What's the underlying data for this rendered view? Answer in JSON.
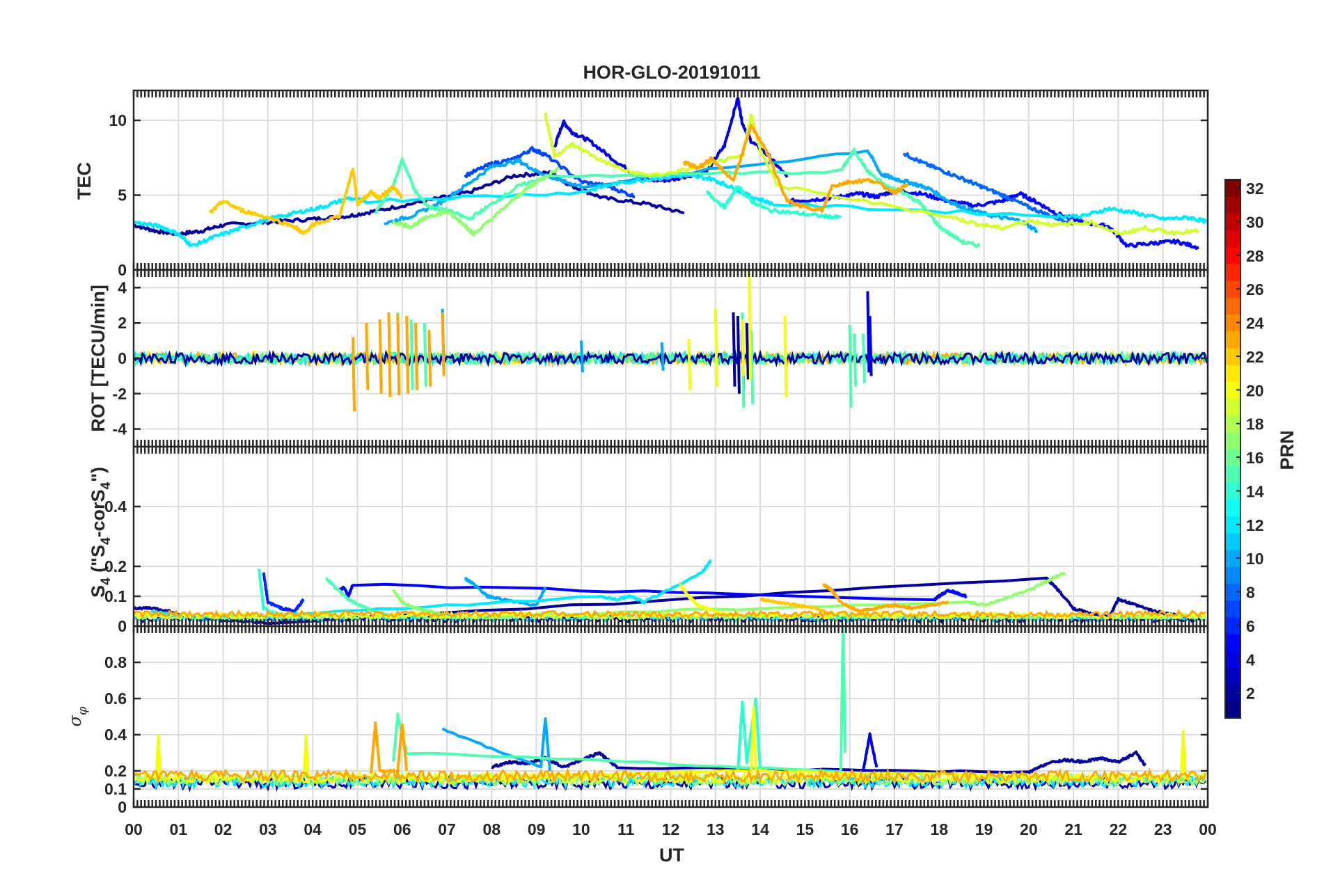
{
  "figure": {
    "title": "HOR-GLO-20191011",
    "xlabel": "UT",
    "x_ticks": [
      "00",
      "01",
      "02",
      "03",
      "04",
      "05",
      "06",
      "07",
      "08",
      "09",
      "10",
      "11",
      "12",
      "13",
      "14",
      "15",
      "16",
      "17",
      "18",
      "19",
      "20",
      "21",
      "22",
      "23",
      "00"
    ]
  },
  "colorbar": {
    "label": "PRN",
    "range": [
      1,
      32
    ],
    "ticks": [
      "2",
      "4",
      "6",
      "8",
      "10",
      "12",
      "14",
      "16",
      "18",
      "20",
      "22",
      "24",
      "26",
      "28",
      "30",
      "32"
    ]
  },
  "chart_data": [
    {
      "type": "line",
      "name": "tec",
      "ylabel": "TEC",
      "ylim": [
        0,
        12
      ],
      "yticks": [
        "0",
        "5",
        "10"
      ],
      "xlim": [
        0,
        24
      ],
      "grid": true,
      "series": [
        {
          "prn": 2,
          "x": [
            0.0,
            0.5,
            1.0,
            1.5,
            2.0,
            3.0,
            4.0,
            4.8,
            5.5,
            6.5,
            7.5,
            8.5,
            9.3,
            9.8,
            10.5,
            11.5,
            12.3
          ],
          "y": [
            3.0,
            2.6,
            2.4,
            2.6,
            3.0,
            3.2,
            3.4,
            3.6,
            4.0,
            4.6,
            5.2,
            6.3,
            6.5,
            5.6,
            4.8,
            4.4,
            3.8
          ]
        },
        {
          "prn": 4,
          "x": [
            9.4,
            9.6,
            9.8,
            10.2,
            10.8,
            11.4,
            12.0,
            12.8,
            13.2,
            13.5,
            13.6,
            13.8,
            14.2,
            14.6
          ],
          "y": [
            8.2,
            9.9,
            9.2,
            8.6,
            7.2,
            6.0,
            6.0,
            6.6,
            8.3,
            11.5,
            9.8,
            8.6,
            7.6,
            6.2
          ]
        },
        {
          "prn": 5,
          "x": [
            14.6,
            15.2,
            15.8,
            16.2,
            16.6,
            17.0,
            17.6,
            18.2,
            18.8,
            19.4,
            19.8,
            20.2,
            20.6,
            21.2,
            21.8,
            22.2,
            22.8,
            23.3,
            23.8
          ],
          "y": [
            4.6,
            4.7,
            4.9,
            5.1,
            4.9,
            5.3,
            5.1,
            4.6,
            4.3,
            4.6,
            5.1,
            4.5,
            3.8,
            3.2,
            2.9,
            1.6,
            1.8,
            1.9,
            1.5
          ]
        },
        {
          "prn": 7,
          "x": [
            7.4,
            8.0,
            8.5,
            8.9,
            9.2,
            10.0,
            10.6,
            11.2
          ],
          "y": [
            6.3,
            7.1,
            7.4,
            8.1,
            7.7,
            5.9,
            5.6,
            4.9
          ]
        },
        {
          "prn": 8,
          "x": [
            17.2,
            17.6,
            18.1,
            18.6,
            19.0,
            19.5,
            20.0,
            20.5,
            21.0
          ],
          "y": [
            7.8,
            7.2,
            6.6,
            6.0,
            5.5,
            4.9,
            4.2,
            3.6,
            3.1
          ]
        },
        {
          "prn": 10,
          "x": [
            5.6,
            6.2,
            6.8,
            7.4,
            8.0,
            8.6,
            9.0,
            9.5,
            10.0,
            16.4,
            16.7,
            17.0,
            17.4,
            17.8,
            18.2,
            18.6,
            19.2,
            19.8,
            20.2
          ],
          "y": [
            3.1,
            3.6,
            4.4,
            5.6,
            6.9,
            7.3,
            6.6,
            6.0,
            5.6,
            8.0,
            6.4,
            6.1,
            5.8,
            5.4,
            4.6,
            4.1,
            3.6,
            3.3,
            2.6
          ]
        },
        {
          "prn": 12,
          "x": [
            0.0,
            0.6,
            1.0,
            1.3,
            1.8,
            2.4,
            3.0,
            3.6,
            4.2,
            4.8,
            5.2,
            10.0,
            10.8,
            11.6,
            12.3,
            12.9,
            13.3,
            13.8,
            14.3,
            20.6,
            21.2,
            21.8,
            22.4,
            23.0,
            23.6,
            24.0
          ],
          "y": [
            3.2,
            2.9,
            2.4,
            1.6,
            2.2,
            2.8,
            3.4,
            3.8,
            4.2,
            4.8,
            4.6,
            5.2,
            5.8,
            6.1,
            6.3,
            6.1,
            5.6,
            4.9,
            4.4,
            3.6,
            3.6,
            4.1,
            3.8,
            3.4,
            3.5,
            3.2
          ]
        },
        {
          "prn": 14,
          "x": [
            12.8,
            13.2,
            13.5,
            13.8,
            14.2,
            14.8,
            15.4,
            15.8
          ],
          "y": [
            5.2,
            4.2,
            5.6,
            4.6,
            4.0,
            3.8,
            3.6,
            3.5
          ]
        },
        {
          "prn": 15,
          "x": [
            5.4,
            5.8,
            6.0,
            6.3,
            6.6,
            7.0,
            7.5,
            8.0,
            8.6,
            9.2,
            15.8,
            16.1,
            16.4,
            16.8,
            17.2,
            17.6,
            18.0,
            18.5,
            18.9
          ],
          "y": [
            3.8,
            5.6,
            7.4,
            5.2,
            4.2,
            4.0,
            3.4,
            4.4,
            5.6,
            6.2,
            6.6,
            8.0,
            6.6,
            5.6,
            5.2,
            4.4,
            2.9,
            1.9,
            1.6
          ]
        },
        {
          "prn": 17,
          "x": [
            5.8,
            6.2,
            6.6,
            7.0,
            7.4,
            7.6,
            8.0,
            8.6,
            9.0,
            9.5
          ],
          "y": [
            3.2,
            2.9,
            3.6,
            3.9,
            3.0,
            2.4,
            3.4,
            5.0,
            5.9,
            6.8
          ]
        },
        {
          "prn": 19,
          "x": [
            9.2,
            9.4,
            9.8,
            10.4,
            11.0,
            11.6,
            12.2,
            13.0,
            13.6,
            13.8,
            14.0,
            14.4,
            18.2,
            18.8,
            19.4,
            20.0,
            20.6,
            21.4,
            22.0,
            22.6,
            23.2,
            23.8
          ],
          "y": [
            10.4,
            7.6,
            8.4,
            7.4,
            6.6,
            6.3,
            6.6,
            7.2,
            7.6,
            10.4,
            8.0,
            5.6,
            3.6,
            3.1,
            2.8,
            3.3,
            3.0,
            3.2,
            2.4,
            2.8,
            2.5,
            2.6
          ]
        },
        {
          "prn": 22,
          "x": [
            1.7,
            2.0,
            2.4,
            3.0,
            3.6,
            3.8,
            4.0,
            4.6,
            4.9,
            5.0,
            5.3,
            5.5,
            5.8,
            6.0
          ],
          "y": [
            3.8,
            4.6,
            4.0,
            3.5,
            2.9,
            2.4,
            3.0,
            3.6,
            6.8,
            4.4,
            5.2,
            4.8,
            5.6,
            4.8
          ]
        },
        {
          "prn": 23,
          "x": [
            12.3,
            12.6,
            12.9,
            13.4,
            13.8,
            14.1,
            14.6,
            15.0,
            15.4,
            15.6,
            16.0,
            16.5,
            17.0,
            17.3
          ],
          "y": [
            7.2,
            6.8,
            7.4,
            6.0,
            9.6,
            8.2,
            4.6,
            4.2,
            4.0,
            5.6,
            5.9,
            6.0,
            5.2,
            5.7
          ]
        }
      ]
    },
    {
      "type": "line",
      "name": "rot",
      "ylabel": "ROT [TECU/min]",
      "ylim": [
        -5,
        5
      ],
      "yticks": [
        "-4",
        "-2",
        "0",
        "2",
        "4"
      ],
      "xlim": [
        0,
        24
      ],
      "grid": true,
      "bursts": [
        {
          "prn": 2,
          "x": [
            13.4,
            13.5,
            13.6,
            13.7
          ],
          "up": [
            2.6,
            2.4,
            1.6,
            2.0
          ],
          "down": [
            -1.6,
            -2.0,
            -1.8,
            -1.2
          ]
        },
        {
          "prn": 4,
          "x": [
            16.4,
            16.45
          ],
          "up": [
            3.8,
            2.4
          ],
          "down": [
            -0.8,
            -1.0
          ]
        },
        {
          "prn": 10,
          "x": [
            6.9,
            10.0,
            11.8
          ],
          "up": [
            2.8,
            1.0,
            0.9
          ],
          "down": [
            -0.8,
            -0.8,
            -0.7
          ]
        },
        {
          "prn": 15,
          "x": [
            5.9,
            6.2,
            6.5,
            13.6,
            13.8,
            16.0,
            16.1,
            16.3
          ],
          "up": [
            2.6,
            2.2,
            2.0,
            2.6,
            1.6,
            1.9,
            1.4,
            1.4
          ],
          "down": [
            -2.1,
            -1.8,
            -1.6,
            -2.8,
            -2.6,
            -2.8,
            -1.6,
            -1.4
          ]
        },
        {
          "prn": 20,
          "x": [
            12.4,
            13.0,
            13.6,
            13.75,
            14.55
          ],
          "up": [
            1.1,
            2.8,
            2.2,
            5.4,
            2.4
          ],
          "down": [
            -1.8,
            -1.6,
            -1.0,
            -1.2,
            -2.2
          ]
        },
        {
          "prn": 23,
          "x": [
            4.9,
            5.2,
            5.5,
            5.7,
            5.9,
            6.1,
            6.3,
            6.6,
            6.9
          ],
          "up": [
            1.2,
            2.0,
            2.2,
            2.6,
            2.5,
            2.4,
            2.0,
            1.6,
            2.6
          ],
          "down": [
            -3.0,
            -1.8,
            -2.0,
            -2.2,
            -2.1,
            -2.0,
            -1.8,
            -1.6,
            -1.0
          ]
        }
      ]
    },
    {
      "type": "line",
      "name": "s4",
      "ylabel": "S4 (\"S4-corS4\")",
      "ylim": [
        0,
        0.6
      ],
      "yticks": [
        "0",
        "0.1",
        "0.2",
        "0.4"
      ],
      "xlim": [
        0,
        24
      ],
      "grid": true,
      "series": [
        {
          "prn": 2,
          "x": [
            0.0,
            0.4,
            0.8,
            1.2,
            2.0,
            3.0,
            20.4,
            20.6,
            21.0,
            21.4,
            21.8,
            22.0,
            22.4,
            22.8,
            23.2,
            23.6
          ],
          "y": [
            0.06,
            0.06,
            0.05,
            0.03,
            0.02,
            0.01,
            0.16,
            0.13,
            0.06,
            0.04,
            0.03,
            0.09,
            0.07,
            0.05,
            0.04,
            0.03
          ]
        },
        {
          "prn": 5,
          "x": [
            4.6,
            4.7,
            4.8,
            4.9,
            17.9,
            18.0,
            18.2,
            18.4,
            18.6
          ],
          "y": [
            0.12,
            0.13,
            0.1,
            0.14,
            0.09,
            0.1,
            0.12,
            0.11,
            0.1
          ]
        },
        {
          "prn": 6,
          "x": [
            2.9,
            3.0,
            3.3,
            3.6,
            3.8
          ],
          "y": [
            0.18,
            0.08,
            0.06,
            0.05,
            0.09
          ]
        },
        {
          "prn": 10,
          "x": [
            7.4,
            7.6,
            7.9,
            8.2,
            8.6,
            9.0,
            9.2
          ],
          "y": [
            0.16,
            0.14,
            0.1,
            0.09,
            0.08,
            0.07,
            0.13
          ]
        },
        {
          "prn": 12,
          "x": [
            0.4,
            0.8,
            1.2,
            1.6,
            10.4,
            10.8,
            11.1,
            11.4,
            12.7,
            12.9
          ],
          "y": [
            0.05,
            0.04,
            0.03,
            0.02,
            0.1,
            0.09,
            0.1,
            0.08,
            0.18,
            0.22
          ]
        },
        {
          "prn": 14,
          "x": [
            2.8,
            2.9,
            3.2,
            3.6,
            4.2
          ],
          "y": [
            0.19,
            0.06,
            0.04,
            0.03,
            0.02
          ]
        },
        {
          "prn": 15,
          "x": [
            4.3,
            4.5,
            4.8,
            5.2,
            5.6,
            6.0,
            6.4,
            6.8
          ],
          "y": [
            0.16,
            0.13,
            0.09,
            0.06,
            0.04,
            0.03,
            0.03,
            0.02
          ]
        },
        {
          "prn": 17,
          "x": [
            5.8,
            6.0,
            6.3,
            6.6,
            6.9,
            7.2,
            18.6,
            19.0,
            19.4,
            20.0,
            20.4,
            20.8
          ],
          "y": [
            0.12,
            0.08,
            0.06,
            0.05,
            0.04,
            0.03,
            0.08,
            0.07,
            0.09,
            0.12,
            0.15,
            0.18
          ]
        },
        {
          "prn": 20,
          "x": [
            12.2,
            12.4,
            12.6,
            12.8,
            13.0,
            13.6
          ],
          "y": [
            0.14,
            0.1,
            0.07,
            0.06,
            0.05,
            0.03
          ]
        },
        {
          "prn": 22,
          "x": [
            14.0,
            14.4,
            14.8,
            15.2,
            15.6
          ],
          "y": [
            0.09,
            0.08,
            0.07,
            0.06,
            0.04
          ]
        },
        {
          "prn": 23,
          "x": [
            15.4,
            15.6,
            15.8,
            16.2,
            16.6,
            17.0,
            17.4,
            17.8,
            18.2
          ],
          "y": [
            0.14,
            0.12,
            0.08,
            0.05,
            0.06,
            0.07,
            0.06,
            0.07,
            0.08
          ]
        }
      ]
    },
    {
      "type": "line",
      "name": "sigma_phi",
      "ylabel": "σφ",
      "ylim": [
        0,
        1
      ],
      "yticks": [
        "0",
        "0.1",
        "0.2",
        "0.4",
        "0.6",
        "0.8"
      ],
      "xlim": [
        0,
        24
      ],
      "grid": true,
      "series": [
        {
          "prn": 2,
          "x": [
            8.0,
            8.4,
            8.8,
            9.2,
            9.6,
            10.0,
            10.4,
            10.8,
            20.0,
            20.4,
            20.8,
            21.2,
            21.6,
            22.0,
            22.4,
            22.6
          ],
          "y": [
            0.22,
            0.25,
            0.24,
            0.27,
            0.22,
            0.26,
            0.3,
            0.22,
            0.19,
            0.24,
            0.26,
            0.25,
            0.27,
            0.25,
            0.3,
            0.23
          ]
        },
        {
          "prn": 4,
          "x": [
            16.3,
            16.45,
            16.6
          ],
          "y": [
            0.2,
            0.4,
            0.22
          ]
        },
        {
          "prn": 10,
          "x": [
            6.9,
            9.1,
            9.2,
            9.3
          ],
          "y": [
            0.43,
            0.22,
            0.49,
            0.2
          ]
        },
        {
          "prn": 14,
          "x": [
            13.5,
            13.6,
            13.7,
            13.9,
            14.0
          ],
          "y": [
            0.2,
            0.58,
            0.25,
            0.6,
            0.2
          ]
        },
        {
          "prn": 15,
          "x": [
            5.8,
            5.9,
            6.1,
            15.8,
            15.85,
            15.9
          ],
          "y": [
            0.25,
            0.51,
            0.3,
            0.2,
            1.0,
            0.3
          ]
        },
        {
          "prn": 20,
          "x": [
            0.5,
            0.55,
            0.6,
            3.8,
            3.85,
            3.9,
            13.8,
            13.85,
            13.9,
            23.4,
            23.45,
            23.5
          ],
          "y": [
            0.15,
            0.39,
            0.15,
            0.15,
            0.39,
            0.15,
            0.2,
            0.55,
            0.2,
            0.15,
            0.42,
            0.15
          ]
        },
        {
          "prn": 23,
          "x": [
            5.3,
            5.4,
            5.5,
            5.9,
            6.0,
            6.1
          ],
          "y": [
            0.18,
            0.46,
            0.2,
            0.2,
            0.46,
            0.2
          ]
        }
      ]
    }
  ]
}
